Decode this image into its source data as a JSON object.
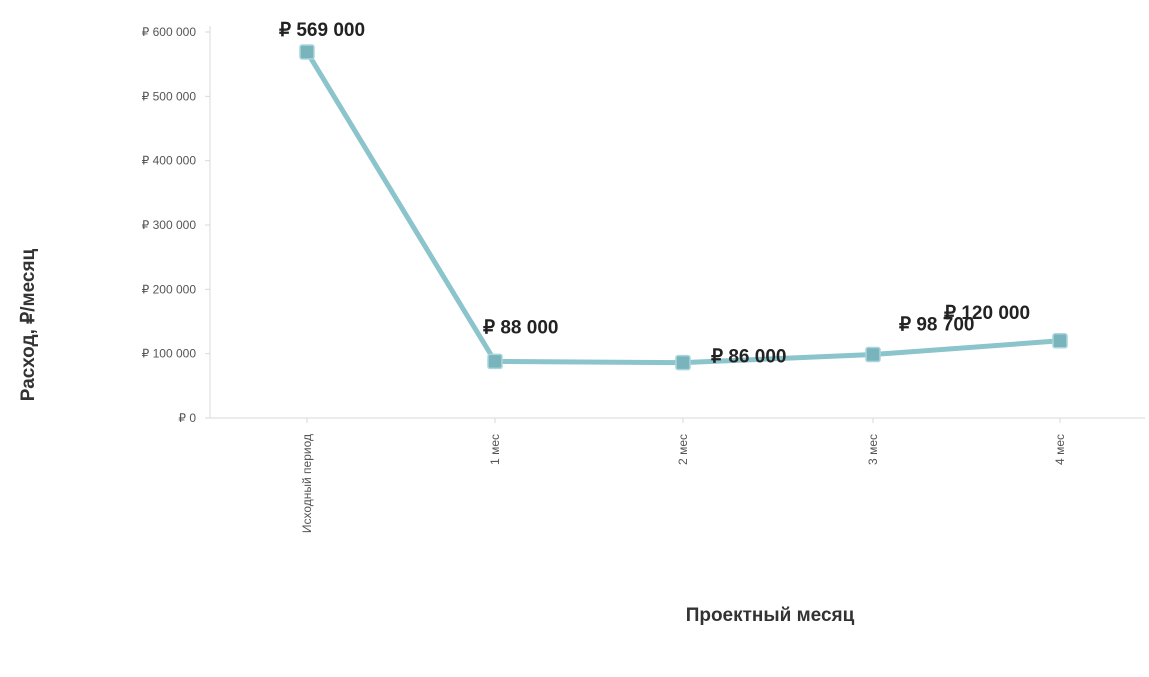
{
  "chart_data": {
    "type": "line",
    "title": "",
    "xlabel": "Проектный месяц",
    "ylabel": "Расход, ₽/месяц",
    "ylim": [
      0,
      600000
    ],
    "yticks": [
      {
        "value": 0,
        "label": "₽ 0"
      },
      {
        "value": 100000,
        "label": "₽ 100 000"
      },
      {
        "value": 200000,
        "label": "₽ 200 000"
      },
      {
        "value": 300000,
        "label": "₽ 300 000"
      },
      {
        "value": 400000,
        "label": "₽ 400 000"
      },
      {
        "value": 500000,
        "label": "₽ 500 000"
      },
      {
        "value": 600000,
        "label": "₽ 600 000"
      }
    ],
    "categories": [
      "Исходный период",
      "1 мес",
      "2 мес",
      "3 мес",
      "4 мес"
    ],
    "series": [
      {
        "values": [
          569000,
          88000,
          86000,
          98700,
          120000
        ],
        "labels": [
          "₽ 569 000",
          "₽ 88 000",
          "₽ 86 000",
          "₽ 98 700",
          "₽ 120 000"
        ],
        "color": "#8cc4cc",
        "marker_color": "#79b4bd"
      }
    ],
    "grid": false,
    "legend": "none"
  }
}
